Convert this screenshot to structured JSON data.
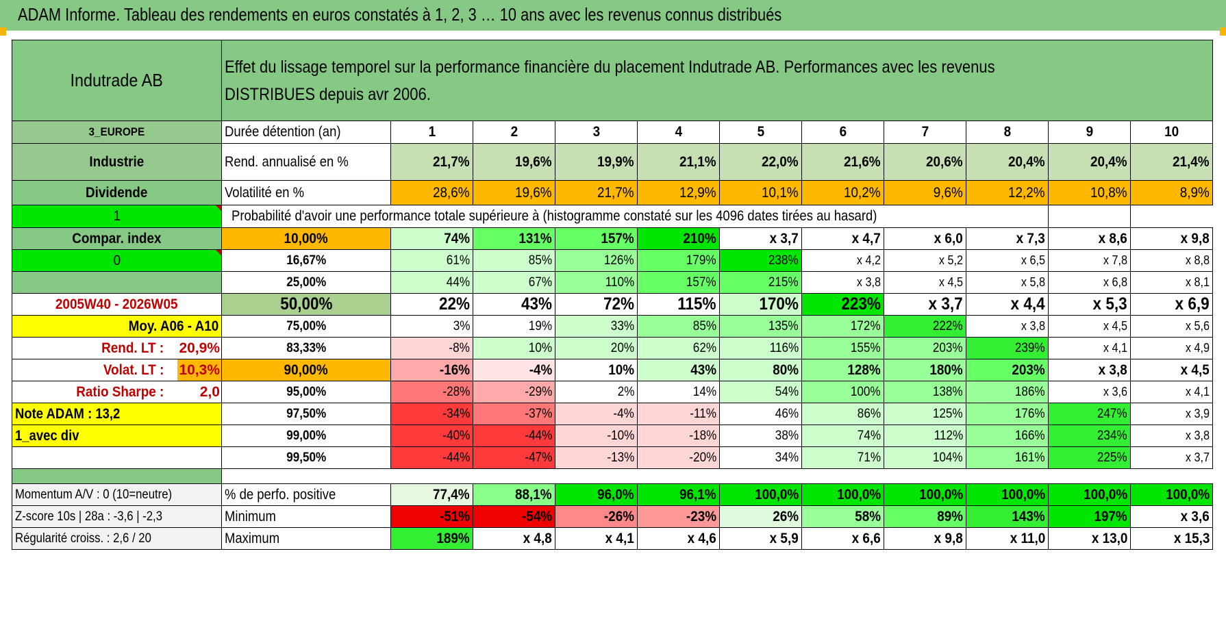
{
  "title": "ADAM Informe. Tableau des rendements en euros constatés à 1, 2, 3 … 10 ans avec les revenus connus distribués",
  "header": {
    "company": "Indutrade AB",
    "description": "Effet du lissage temporel sur la performance financière du placement Indutrade AB. Performances avec les revenus DISTRIBUES depuis avr 2006."
  },
  "left_labels": {
    "region": "3_EUROPE",
    "sector": "Industrie",
    "dividend": "Dividende",
    "one": "1",
    "compar_index": "Compar. index",
    "zero": "0",
    "period": "2005W40 - 2026W05",
    "moy": "Moy. A06 - A10",
    "rend_lt_label": "Rend. LT :",
    "rend_lt_value": "20,9%",
    "volat_lt_label": "Volat. LT :",
    "volat_lt_value": "10,3%",
    "sharpe_label": "Ratio Sharpe :",
    "sharpe_value": "2,0",
    "note_adam": "Note ADAM : 13,2",
    "avec_div": "1_avec div",
    "momentum": "Momentum A/V : 0 (10=neutre)",
    "zscore": "Z-score 10s | 28a : -3,6 | -2,3",
    "regularite": "Régularité croiss. : 2,6 / 20"
  },
  "row_labels": {
    "duree": "Durée détention (an)",
    "rend": "Rend. annualisé en %",
    "volat": "Volatilité en %",
    "proba": "Probabilité d'avoir une performance totale supérieure à (histogramme constaté sur les 4096 dates tirées au hasard)",
    "perf_positive": "% de perfo. positive",
    "minimum": "Minimum",
    "maximum": "Maximum"
  },
  "years": [
    "1",
    "2",
    "3",
    "4",
    "5",
    "6",
    "7",
    "8",
    "9",
    "10"
  ],
  "rend": [
    "21,7%",
    "19,6%",
    "19,9%",
    "21,1%",
    "22,0%",
    "21,6%",
    "20,6%",
    "20,4%",
    "20,4%",
    "21,4%"
  ],
  "volat": [
    "28,6%",
    "19,6%",
    "21,7%",
    "12,9%",
    "10,1%",
    "10,2%",
    "9,6%",
    "12,2%",
    "10,8%",
    "8,9%"
  ],
  "prob_rows": [
    {
      "pct": "10,00%",
      "values": [
        "74%",
        "131%",
        "157%",
        "210%",
        "x 3,7",
        "x 4,7",
        "x 6,0",
        "x 7,3",
        "x 8,6",
        "x 9,8"
      ]
    },
    {
      "pct": "16,67%",
      "values": [
        "61%",
        "85%",
        "126%",
        "179%",
        "238%",
        "x 4,2",
        "x 5,2",
        "x 6,5",
        "x 7,8",
        "x 8,8"
      ]
    },
    {
      "pct": "25,00%",
      "values": [
        "44%",
        "67%",
        "110%",
        "157%",
        "215%",
        "x 3,8",
        "x 4,5",
        "x 5,8",
        "x 6,8",
        "x 8,1"
      ]
    },
    {
      "pct": "50,00%",
      "values": [
        "22%",
        "43%",
        "72%",
        "115%",
        "170%",
        "223%",
        "x 3,7",
        "x 4,4",
        "x 5,3",
        "x 6,9"
      ]
    },
    {
      "pct": "75,00%",
      "values": [
        "3%",
        "19%",
        "33%",
        "85%",
        "135%",
        "172%",
        "222%",
        "x 3,8",
        "x 4,5",
        "x 5,6"
      ]
    },
    {
      "pct": "83,33%",
      "values": [
        "-8%",
        "10%",
        "20%",
        "62%",
        "116%",
        "155%",
        "203%",
        "239%",
        "x 4,1",
        "x 4,9"
      ]
    },
    {
      "pct": "90,00%",
      "values": [
        "-16%",
        "-4%",
        "10%",
        "43%",
        "80%",
        "128%",
        "180%",
        "203%",
        "x 3,8",
        "x 4,5"
      ]
    },
    {
      "pct": "95,00%",
      "values": [
        "-28%",
        "-29%",
        "2%",
        "14%",
        "54%",
        "100%",
        "138%",
        "186%",
        "x 3,6",
        "x 4,1"
      ]
    },
    {
      "pct": "97,50%",
      "values": [
        "-34%",
        "-37%",
        "-4%",
        "-11%",
        "46%",
        "86%",
        "125%",
        "176%",
        "247%",
        "x 3,9"
      ]
    },
    {
      "pct": "99,00%",
      "values": [
        "-40%",
        "-44%",
        "-10%",
        "-18%",
        "38%",
        "74%",
        "112%",
        "166%",
        "234%",
        "x 3,8"
      ]
    },
    {
      "pct": "99,50%",
      "values": [
        "-44%",
        "-47%",
        "-13%",
        "-20%",
        "34%",
        "71%",
        "104%",
        "161%",
        "225%",
        "x 3,7"
      ]
    }
  ],
  "perf_positive": [
    "77,4%",
    "88,1%",
    "96,0%",
    "96,1%",
    "100,0%",
    "100,0%",
    "100,0%",
    "100,0%",
    "100,0%",
    "100,0%"
  ],
  "minimum": [
    "-51%",
    "-54%",
    "-26%",
    "-23%",
    "26%",
    "58%",
    "89%",
    "143%",
    "197%",
    "x 3,6"
  ],
  "maximum": [
    "189%",
    "x 4,8",
    "x 4,1",
    "x 4,6",
    "x 5,9",
    "x 6,6",
    "x 9,8",
    "x 11,0",
    "x 13,0",
    "x 15,3"
  ],
  "colors": {
    "header_green": "#86c984",
    "bright_green": "#00e600",
    "yellow": "#ffff00",
    "orange": "#ffb800",
    "red_text": "#c00000",
    "light_green": "#c6e0b4",
    "deep_red": "#f00000"
  }
}
